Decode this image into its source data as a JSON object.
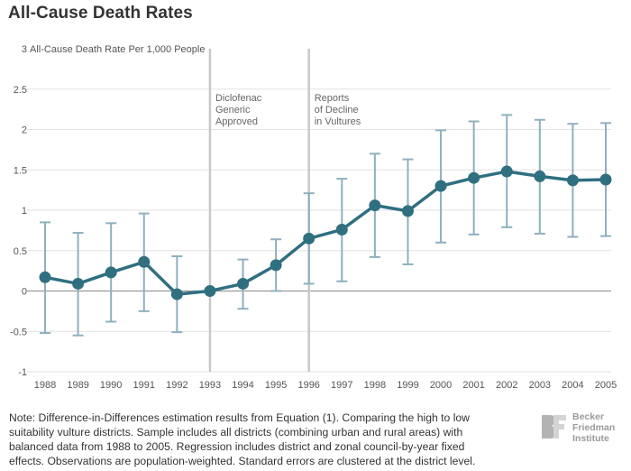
{
  "title": "All-Cause Death Rates",
  "note": "Note: Difference-in-Differences estimation results from Equation (1). Comparing the high to low suitability vulture districts. Sample includes all districts (combining urban and rural areas) with balanced data from 1988 to 2005. Regression includes district and zonal council-by-year fixed effects. Observations are population-weighted. Standard errors are clustered at the district level.",
  "logo": {
    "lines": [
      "Becker",
      "Friedman",
      "Institute"
    ]
  },
  "colors": {
    "series": "#2f6f80",
    "errorbar": "#8fb0bd",
    "vline": "#c8c8c8",
    "zero": "#999999"
  },
  "chart_data": {
    "type": "line",
    "ylabel": "All-Cause Death Rate Per 1,000 People",
    "ylim": [
      -1,
      3
    ],
    "yticks": [
      "-1",
      "-0.5",
      "0",
      "0.5",
      "1",
      "1.5",
      "2",
      "2.5",
      "3"
    ],
    "categories": [
      "1988",
      "1989",
      "1990",
      "1991",
      "1992",
      "1993",
      "1994",
      "1995",
      "1996",
      "1997",
      "1998",
      "1999",
      "2000",
      "2001",
      "2002",
      "2003",
      "2004",
      "2005"
    ],
    "series": [
      {
        "values": [
          0.17,
          0.09,
          0.23,
          0.36,
          -0.04,
          0.0,
          0.09,
          0.32,
          0.65,
          0.76,
          1.06,
          0.99,
          1.3,
          1.4,
          1.48,
          1.42,
          1.37,
          1.38
        ],
        "lower": [
          -0.52,
          -0.55,
          -0.38,
          -0.25,
          -0.51,
          0.0,
          -0.22,
          0.0,
          0.09,
          0.12,
          0.42,
          0.33,
          0.6,
          0.7,
          0.79,
          0.71,
          0.67,
          0.68
        ],
        "upper": [
          0.85,
          0.72,
          0.84,
          0.96,
          0.43,
          0.0,
          0.39,
          0.64,
          1.21,
          1.39,
          1.7,
          1.63,
          1.99,
          2.1,
          2.18,
          2.12,
          2.07,
          2.08
        ]
      }
    ],
    "annotations": [
      {
        "x": "1993",
        "lines": [
          "Diclofenac",
          "Generic",
          "Approved"
        ]
      },
      {
        "x": "1996",
        "lines": [
          "Reports",
          "of Decline",
          "in Vultures"
        ]
      }
    ],
    "grid": true
  }
}
